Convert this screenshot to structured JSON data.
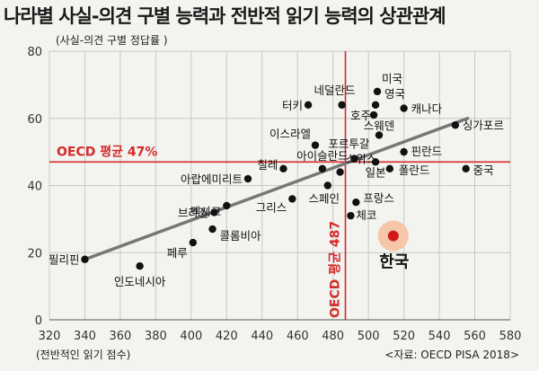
{
  "chart_data": {
    "type": "scatter",
    "title": "나라별 사실-의견 구별 능력과 전반적 읽기 능력의 상관관계",
    "ylabel": "(사실-의견 구별 정답률 )",
    "xlabel": "(전반적인 읽기 점수)",
    "source": "<자료: OECD PISA 2018>",
    "xlim": [
      320,
      580
    ],
    "ylim": [
      0,
      80
    ],
    "x_ticks": [
      "320",
      "340",
      "360",
      "380",
      "400",
      "420",
      "440",
      "460",
      "480",
      "500",
      "520",
      "540",
      "560",
      "580"
    ],
    "y_ticks": [
      "0",
      "20",
      "40",
      "60",
      "80"
    ],
    "grid": true,
    "points": [
      {
        "name": "필리핀",
        "x": 340,
        "y": 18
      },
      {
        "name": "인도네시아",
        "x": 371,
        "y": 16
      },
      {
        "name": "페루",
        "x": 401,
        "y": 23
      },
      {
        "name": "콜롬비아",
        "x": 412,
        "y": 27
      },
      {
        "name": "브라질",
        "x": 413,
        "y": 32
      },
      {
        "name": "멕시코",
        "x": 420,
        "y": 34
      },
      {
        "name": "아랍에미리트",
        "x": 432,
        "y": 42
      },
      {
        "name": "칠레",
        "x": 452,
        "y": 45
      },
      {
        "name": "그리스",
        "x": 457,
        "y": 36
      },
      {
        "name": "이스라엘",
        "x": 470,
        "y": 52
      },
      {
        "name": "아이슬란드",
        "x": 474,
        "y": 45
      },
      {
        "name": "스페인",
        "x": 477,
        "y": 40
      },
      {
        "name": "네덜란드",
        "x": 485,
        "y": 64
      },
      {
        "name": "터키",
        "x": 466,
        "y": 64
      },
      {
        "name": "포르투갈",
        "x": 492,
        "y": 48
      },
      {
        "name": "스웨덴",
        "x": 506,
        "y": 55
      },
      {
        "name": "스위스",
        "x": 484,
        "y": 44
      },
      {
        "name": "체코",
        "x": 490,
        "y": 31
      },
      {
        "name": "프랑스",
        "x": 493,
        "y": 35
      },
      {
        "name": "호주",
        "x": 503,
        "y": 61
      },
      {
        "name": "미국",
        "x": 505,
        "y": 68
      },
      {
        "name": "영국",
        "x": 504,
        "y": 64
      },
      {
        "name": "캐나다",
        "x": 520,
        "y": 63
      },
      {
        "name": "핀란드",
        "x": 520,
        "y": 50
      },
      {
        "name": "일본",
        "x": 504,
        "y": 47
      },
      {
        "name": "폴란드",
        "x": 512,
        "y": 45
      },
      {
        "name": "싱가포르",
        "x": 549,
        "y": 58
      },
      {
        "name": "중국",
        "x": 555,
        "y": 45
      },
      {
        "name": "한국",
        "x": 514,
        "y": 25
      }
    ],
    "highlight": "한국",
    "reference_lines": [
      {
        "axis": "y",
        "value": 47,
        "label": "OECD 평균 47%"
      },
      {
        "axis": "x",
        "value": 487,
        "label": "OECD 평균 487"
      }
    ],
    "trendline": {
      "x": [
        340,
        556
      ],
      "y": [
        18,
        60
      ]
    },
    "colors": {
      "reference": "#d32b2b",
      "trend": "#777777",
      "point": "#111111",
      "highlight": "#d01818",
      "highlight_halo": "#f5c6a8",
      "grid": "#c9c9c4"
    }
  }
}
